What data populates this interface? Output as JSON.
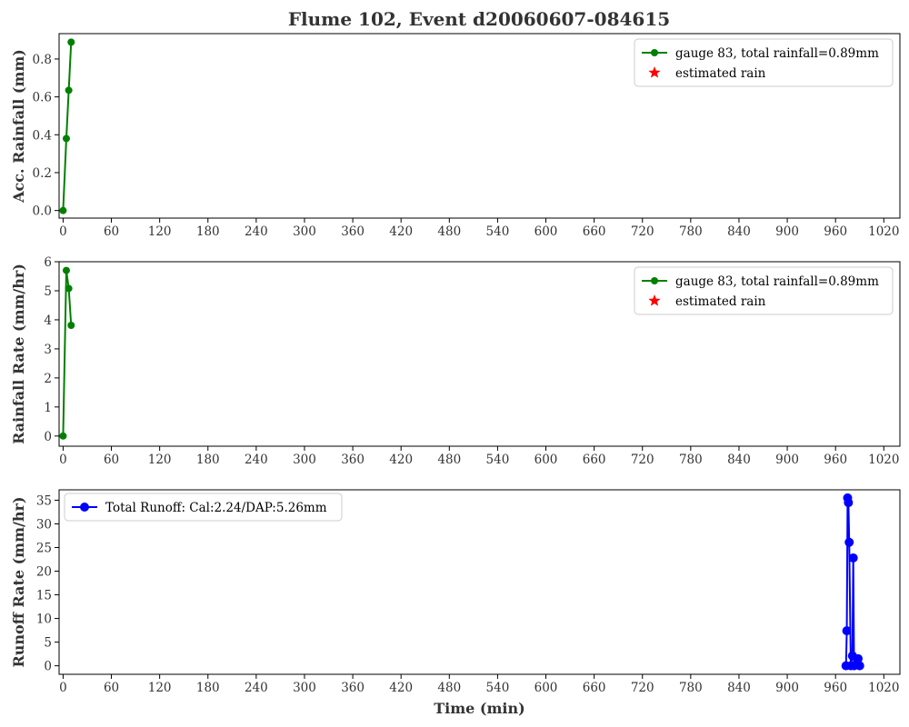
{
  "title": "Flume 102, Event d20060607-084615",
  "colors": {
    "gauge": "#008000",
    "estimated": "#ff0000",
    "runoff": "#0000ff",
    "text": "#333333"
  },
  "chart_data": [
    {
      "type": "line",
      "ylabel": "Acc. Rainfall (mm)",
      "xlabel": "",
      "xlim": [
        -5,
        1040
      ],
      "ylim": [
        -0.04,
        0.934
      ],
      "xticks": [
        0,
        60,
        120,
        180,
        240,
        300,
        360,
        420,
        480,
        540,
        600,
        660,
        720,
        780,
        840,
        900,
        960,
        1020
      ],
      "yticks": [
        0.0,
        0.2,
        0.4,
        0.6,
        0.8
      ],
      "ytick_labels": [
        "0.0",
        "0.2",
        "0.4",
        "0.6",
        "0.8"
      ],
      "legend_position": "upper-right",
      "series": [
        {
          "name": "gauge 83, total rainfall=0.89mm",
          "color": "#008000",
          "marker": "circle",
          "x": [
            0,
            4,
            7,
            10
          ],
          "y": [
            0.0,
            0.38,
            0.635,
            0.889
          ]
        },
        {
          "name": "estimated rain",
          "color": "#ff0000",
          "marker": "star",
          "x": [],
          "y": []
        }
      ]
    },
    {
      "type": "line",
      "ylabel": "Rainfall Rate (mm/hr)",
      "xlabel": "",
      "xlim": [
        -5,
        1040
      ],
      "ylim": [
        -0.35,
        6.0
      ],
      "xticks": [
        0,
        60,
        120,
        180,
        240,
        300,
        360,
        420,
        480,
        540,
        600,
        660,
        720,
        780,
        840,
        900,
        960,
        1020
      ],
      "yticks": [
        0,
        1,
        2,
        3,
        4,
        5,
        6
      ],
      "ytick_labels": [
        "0",
        "1",
        "2",
        "3",
        "4",
        "5",
        "6"
      ],
      "legend_position": "upper-right",
      "series": [
        {
          "name": "gauge 83, total rainfall=0.89mm",
          "color": "#008000",
          "marker": "circle",
          "x": [
            0,
            4,
            7,
            10
          ],
          "y": [
            0.0,
            5.7,
            5.08,
            3.81
          ]
        },
        {
          "name": "estimated rain",
          "color": "#ff0000",
          "marker": "star",
          "x": [],
          "y": []
        }
      ]
    },
    {
      "type": "line",
      "ylabel": "Runoff Rate (mm/hr)",
      "xlabel": "Time (min)",
      "xlim": [
        -5,
        1040
      ],
      "ylim": [
        -1.8,
        37.2
      ],
      "xticks": [
        0,
        60,
        120,
        180,
        240,
        300,
        360,
        420,
        480,
        540,
        600,
        660,
        720,
        780,
        840,
        900,
        960,
        1020
      ],
      "yticks": [
        0,
        5,
        10,
        15,
        20,
        25,
        30,
        35
      ],
      "ytick_labels": [
        "0",
        "5",
        "10",
        "15",
        "20",
        "25",
        "30",
        "35"
      ],
      "legend_position": "upper-left",
      "series": [
        {
          "name": "Total Runoff: Cal:2.24/DAP:5.26mm",
          "color": "#0000ff",
          "marker": "circle",
          "x": [
            973,
            974,
            975,
            976,
            977,
            979,
            981,
            982,
            983,
            988,
            990
          ],
          "y": [
            0.0,
            7.4,
            35.5,
            34.5,
            26.1,
            0.0,
            2.1,
            22.8,
            0.0,
            1.5,
            0.0
          ]
        }
      ]
    }
  ]
}
